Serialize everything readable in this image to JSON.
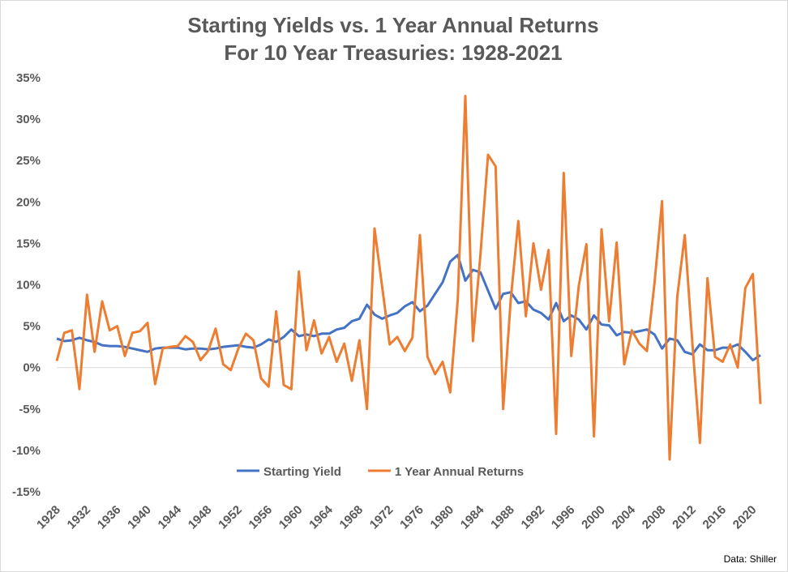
{
  "chart_data": {
    "type": "line",
    "title": [
      "Starting Yields vs. 1 Year Annual Returns",
      "For 10 Year Treasuries: 1928-2021"
    ],
    "annotation": "Data: Shiller",
    "x": [
      1928,
      1929,
      1930,
      1931,
      1932,
      1933,
      1934,
      1935,
      1936,
      1937,
      1938,
      1939,
      1940,
      1941,
      1942,
      1943,
      1944,
      1945,
      1946,
      1947,
      1948,
      1949,
      1950,
      1951,
      1952,
      1953,
      1954,
      1955,
      1956,
      1957,
      1958,
      1959,
      1960,
      1961,
      1962,
      1963,
      1964,
      1965,
      1966,
      1967,
      1968,
      1969,
      1970,
      1971,
      1972,
      1973,
      1974,
      1975,
      1976,
      1977,
      1978,
      1979,
      1980,
      1981,
      1982,
      1983,
      1984,
      1985,
      1986,
      1987,
      1988,
      1989,
      1990,
      1991,
      1992,
      1993,
      1994,
      1995,
      1996,
      1997,
      1998,
      1999,
      2000,
      2001,
      2002,
      2003,
      2004,
      2005,
      2006,
      2007,
      2008,
      2009,
      2010,
      2011,
      2012,
      2013,
      2014,
      2015,
      2016,
      2017,
      2018,
      2019,
      2020,
      2021
    ],
    "xlim": [
      1928,
      2021
    ],
    "xticks": [
      1928,
      1932,
      1936,
      1940,
      1944,
      1948,
      1952,
      1956,
      1960,
      1964,
      1968,
      1972,
      1976,
      1980,
      1984,
      1988,
      1992,
      1996,
      2000,
      2004,
      2008,
      2012,
      2016,
      2020
    ],
    "ylim": [
      -15,
      35
    ],
    "yticks": [
      {
        "value": -15,
        "label": "-15%"
      },
      {
        "value": -10,
        "label": "-10%"
      },
      {
        "value": -5,
        "label": "-5%"
      },
      {
        "value": 0,
        "label": "0%"
      },
      {
        "value": 5,
        "label": "5%"
      },
      {
        "value": 10,
        "label": "10%"
      },
      {
        "value": 15,
        "label": "15%"
      },
      {
        "value": 20,
        "label": "20%"
      },
      {
        "value": 25,
        "label": "25%"
      },
      {
        "value": 30,
        "label": "30%"
      },
      {
        "value": 35,
        "label": "35%"
      }
    ],
    "legend": "bottom",
    "series": [
      {
        "name": "Starting Yield",
        "color": "#4472c4",
        "values": [
          3.5,
          3.2,
          3.3,
          3.6,
          3.3,
          3.1,
          2.7,
          2.6,
          2.6,
          2.5,
          2.3,
          2.1,
          1.9,
          2.3,
          2.4,
          2.4,
          2.4,
          2.2,
          2.3,
          2.3,
          2.2,
          2.3,
          2.5,
          2.6,
          2.7,
          2.5,
          2.4,
          2.8,
          3.4,
          3.1,
          3.7,
          4.6,
          3.8,
          4.0,
          3.8,
          4.1,
          4.1,
          4.6,
          4.8,
          5.6,
          5.9,
          7.6,
          6.4,
          5.9,
          6.3,
          6.6,
          7.4,
          7.9,
          6.8,
          7.5,
          8.9,
          10.3,
          12.8,
          13.6,
          10.5,
          11.8,
          11.5,
          9.3,
          7.1,
          8.9,
          9.1,
          7.8,
          8.0,
          7.0,
          6.6,
          5.8,
          7.8,
          5.6,
          6.3,
          5.8,
          4.6,
          6.3,
          5.2,
          5.1,
          3.9,
          4.3,
          4.2,
          4.4,
          4.6,
          4.0,
          2.3,
          3.5,
          3.3,
          1.9,
          1.6,
          2.8,
          2.1,
          2.1,
          2.4,
          2.4,
          2.8,
          1.9,
          0.9,
          1.5
        ]
      },
      {
        "name": "1 Year Annual Returns",
        "color": "#ed7d31",
        "values": [
          0.8,
          4.2,
          4.5,
          -2.6,
          8.8,
          1.9,
          8.0,
          4.5,
          5.0,
          1.4,
          4.2,
          4.4,
          5.4,
          -2.0,
          2.3,
          2.5,
          2.6,
          3.8,
          3.1,
          0.9,
          2.0,
          4.7,
          0.4,
          -0.3,
          2.3,
          4.1,
          3.3,
          -1.3,
          -2.3,
          6.8,
          -2.1,
          -2.6,
          11.6,
          2.1,
          5.7,
          1.7,
          3.7,
          0.7,
          2.9,
          -1.6,
          3.3,
          -5.0,
          16.8,
          9.8,
          2.8,
          3.7,
          2.0,
          3.6,
          16.0,
          1.3,
          -0.8,
          0.7,
          -3.0,
          8.2,
          32.8,
          3.2,
          13.7,
          25.7,
          24.3,
          -5.0,
          8.2,
          17.7,
          6.2,
          15.0,
          9.4,
          14.2,
          -8.0,
          23.5,
          1.4,
          9.9,
          14.9,
          -8.3,
          16.7,
          5.6,
          15.1,
          0.4,
          4.5,
          2.9,
          2.0,
          10.2,
          20.1,
          -11.1,
          8.5,
          16.0,
          3.0,
          -9.1,
          10.8,
          1.3,
          0.7,
          2.8,
          0.0,
          9.6,
          11.3,
          -4.4
        ]
      }
    ]
  }
}
